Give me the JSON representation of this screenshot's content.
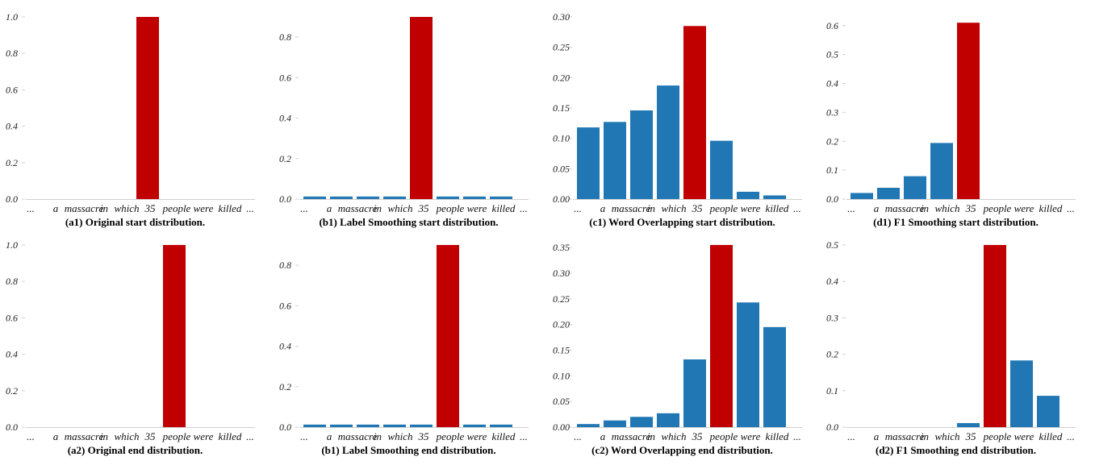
{
  "colors": {
    "normal": "#2077b4",
    "highlight": "#c00000",
    "axis": "#cfcfcf",
    "text": "#111111",
    "highlight_text": "#c00000"
  },
  "chart_data": [
    {
      "id": "a1",
      "type": "bar",
      "title": "(a1) Original start distribution.",
      "categories": [
        "a",
        "massacre",
        "in",
        "which",
        "35",
        "people",
        "were",
        "killed"
      ],
      "ellipsis_left": "...",
      "ellipsis_right": "...",
      "values": [
        0,
        0,
        0,
        0,
        1.0,
        0,
        0,
        0
      ],
      "highlight_index": 4,
      "ylim": [
        0,
        1.0
      ],
      "yticks": [
        "0.0",
        "0.2",
        "0.4",
        "0.6",
        "0.8",
        "1.0"
      ]
    },
    {
      "id": "b1",
      "type": "bar",
      "title": "(b1) Label Smoothing start distribution.",
      "categories": [
        "a",
        "massacre",
        "in",
        "which",
        "35",
        "people",
        "were",
        "killed"
      ],
      "ellipsis_left": "...",
      "ellipsis_right": "...",
      "values": [
        0.0125,
        0.0125,
        0.0125,
        0.0125,
        0.9,
        0.0125,
        0.0125,
        0.0125
      ],
      "highlight_index": 4,
      "ylim": [
        0,
        0.9
      ],
      "yticks": [
        "0.0",
        "0.2",
        "0.4",
        "0.6",
        "0.8"
      ]
    },
    {
      "id": "c1",
      "type": "bar",
      "title": "(c1) Word Overlapping start distribution.",
      "categories": [
        "a",
        "massacre",
        "in",
        "which",
        "35",
        "people",
        "were",
        "killed"
      ],
      "ellipsis_left": "...",
      "ellipsis_right": "...",
      "values": [
        0.118,
        0.127,
        0.146,
        0.187,
        0.285,
        0.096,
        0.012,
        0.006
      ],
      "highlight_index": 4,
      "ylim": [
        0,
        0.3
      ],
      "yticks": [
        "0.00",
        "0.05",
        "0.10",
        "0.15",
        "0.20",
        "0.25",
        "0.30"
      ]
    },
    {
      "id": "d1",
      "type": "bar",
      "title": "(d1) F1 Smoothing start distribution.",
      "categories": [
        "a",
        "massacre",
        "in",
        "which",
        "35",
        "people",
        "were",
        "killed"
      ],
      "ellipsis_left": "...",
      "ellipsis_right": "...",
      "values": [
        0.021,
        0.039,
        0.079,
        0.194,
        0.61,
        0,
        0,
        0
      ],
      "highlight_index": 4,
      "ylim": [
        0,
        0.63
      ],
      "yticks": [
        "0.0",
        "0.1",
        "0.2",
        "0.3",
        "0.4",
        "0.5",
        "0.6"
      ]
    },
    {
      "id": "a2",
      "type": "bar",
      "title": "(a2) Original end distribution.",
      "categories": [
        "a",
        "massacre",
        "in",
        "which",
        "35",
        "people",
        "were",
        "killed"
      ],
      "ellipsis_left": "...",
      "ellipsis_right": "...",
      "values": [
        0,
        0,
        0,
        0,
        0,
        1.0,
        0,
        0
      ],
      "highlight_index": 5,
      "ylim": [
        0,
        1.0
      ],
      "yticks": [
        "0.0",
        "0.2",
        "0.4",
        "0.6",
        "0.8",
        "1.0"
      ]
    },
    {
      "id": "b2",
      "type": "bar",
      "title": "(b1) Label Smoothing end distribution.",
      "categories": [
        "a",
        "massacre",
        "in",
        "which",
        "35",
        "people",
        "were",
        "killed"
      ],
      "ellipsis_left": "...",
      "ellipsis_right": "...",
      "values": [
        0.0125,
        0.0125,
        0.0125,
        0.0125,
        0.0125,
        0.9,
        0.0125,
        0.0125
      ],
      "highlight_index": 5,
      "ylim": [
        0,
        0.9
      ],
      "yticks": [
        "0.0",
        "0.2",
        "0.4",
        "0.6",
        "0.8"
      ]
    },
    {
      "id": "c2",
      "type": "bar",
      "title": "(c2) Word Overlapping end distribution.",
      "categories": [
        "a",
        "massacre",
        "in",
        "which",
        "35",
        "people",
        "were",
        "killed"
      ],
      "ellipsis_left": "...",
      "ellipsis_right": "...",
      "values": [
        0.006,
        0.013,
        0.02,
        0.027,
        0.132,
        0.355,
        0.243,
        0.195
      ],
      "highlight_index": 5,
      "ylim": [
        0,
        0.355
      ],
      "yticks": [
        "0.00",
        "0.05",
        "0.10",
        "0.15",
        "0.20",
        "0.25",
        "0.30",
        "0.35"
      ]
    },
    {
      "id": "d2",
      "type": "bar",
      "title": "(d2) F1 Smoothing end distribution.",
      "categories": [
        "a",
        "massacre",
        "in",
        "which",
        "35",
        "people",
        "were",
        "killed"
      ],
      "ellipsis_left": "...",
      "ellipsis_right": "...",
      "values": [
        0,
        0,
        0,
        0,
        0.011,
        0.5,
        0.183,
        0.086
      ],
      "highlight_index": 5,
      "ylim": [
        0,
        0.5
      ],
      "yticks": [
        "0.0",
        "0.1",
        "0.2",
        "0.3",
        "0.4",
        "0.5"
      ]
    }
  ]
}
